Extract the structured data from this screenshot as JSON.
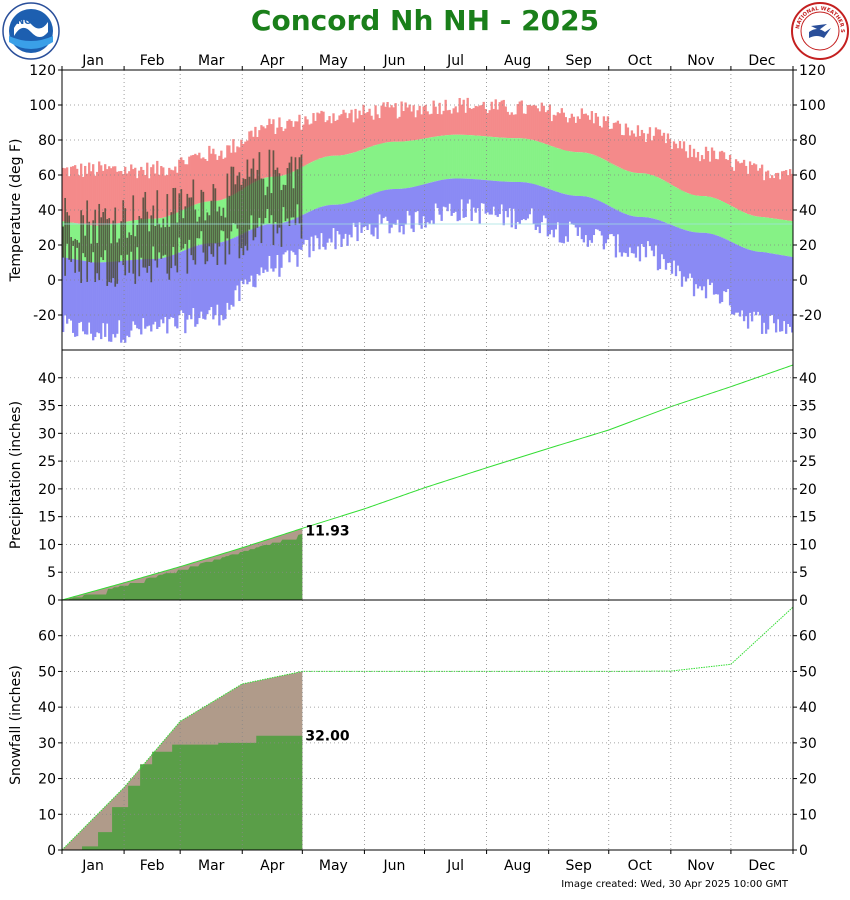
{
  "title": "Concord Nh NH - 2025",
  "footer": "Image created: Wed, 30 Apr 2025 10:00 GMT",
  "logos": {
    "left": "NOAA",
    "right": "NATIONAL WEATHER SERVICE"
  },
  "colors": {
    "record_high": "#f48a8a",
    "normal_range": "#86f286",
    "record_low": "#8a8af4",
    "observed_temp": "#4b4b3a",
    "precip_normal_fill": "#b09b8a",
    "precip_observed_fill": "#5a9e48",
    "normal_line": "#33dd33",
    "title": "#1a7f1a"
  },
  "chart_data": [
    {
      "type": "area",
      "ylabel": "Temperature (deg F)",
      "ylim": [
        -40,
        120
      ],
      "yticks": [
        -20,
        0,
        20,
        40,
        60,
        80,
        100,
        120
      ],
      "months": [
        "Jan",
        "Feb",
        "Mar",
        "Apr",
        "May",
        "Jun",
        "Jul",
        "Aug",
        "Sep",
        "Oct",
        "Nov",
        "Dec"
      ],
      "series": [
        {
          "name": "record_high",
          "values": [
            63,
            63,
            72,
            88,
            94,
            97,
            100,
            98,
            94,
            84,
            72,
            62
          ]
        },
        {
          "name": "normal_high",
          "values": [
            31,
            35,
            45,
            59,
            71,
            79,
            83,
            81,
            73,
            61,
            48,
            36
          ]
        },
        {
          "name": "normal_low",
          "values": [
            10,
            12,
            21,
            32,
            43,
            52,
            58,
            56,
            48,
            36,
            27,
            16
          ]
        },
        {
          "name": "record_low",
          "values": [
            -30,
            -28,
            -20,
            8,
            24,
            32,
            40,
            36,
            26,
            16,
            -4,
            -24
          ]
        }
      ],
      "observed": {
        "through_day": 120,
        "high_range": [
          20,
          88
        ],
        "low_range": [
          -15,
          50
        ]
      },
      "grid": true
    },
    {
      "type": "line",
      "ylabel": "Precipitation (inches)",
      "ylim": [
        0,
        45
      ],
      "yticks": [
        0,
        5,
        10,
        15,
        20,
        25,
        30,
        35,
        40
      ],
      "normal_cumulative_end_of_month": [
        3.1,
        6.0,
        9.4,
        12.9,
        16.4,
        20.2,
        23.8,
        27.3,
        30.6,
        34.8,
        38.4,
        42.3
      ],
      "observed_total": 11.93,
      "observed_through_day": 120,
      "annotation": "11.93",
      "grid": true
    },
    {
      "type": "line",
      "ylabel": "Snowfall (inches)",
      "ylim": [
        0,
        70
      ],
      "yticks": [
        0,
        10,
        20,
        30,
        40,
        50,
        60
      ],
      "normal_cumulative_end_of_month": [
        17.5,
        36.0,
        46.5,
        50.0,
        50.0,
        50.0,
        50.0,
        50.0,
        50.0,
        50.1,
        52.0,
        68.0
      ],
      "observed_steps": [
        {
          "day": 0,
          "value": 0
        },
        {
          "day": 10,
          "value": 1
        },
        {
          "day": 18,
          "value": 5
        },
        {
          "day": 25,
          "value": 12
        },
        {
          "day": 33,
          "value": 18
        },
        {
          "day": 39,
          "value": 24
        },
        {
          "day": 45,
          "value": 27.5
        },
        {
          "day": 55,
          "value": 29.5
        },
        {
          "day": 78,
          "value": 30
        },
        {
          "day": 97,
          "value": 32
        },
        {
          "day": 120,
          "value": 32
        }
      ],
      "observed_total": 32.0,
      "observed_through_day": 120,
      "annotation": "32.00",
      "grid": true
    }
  ]
}
